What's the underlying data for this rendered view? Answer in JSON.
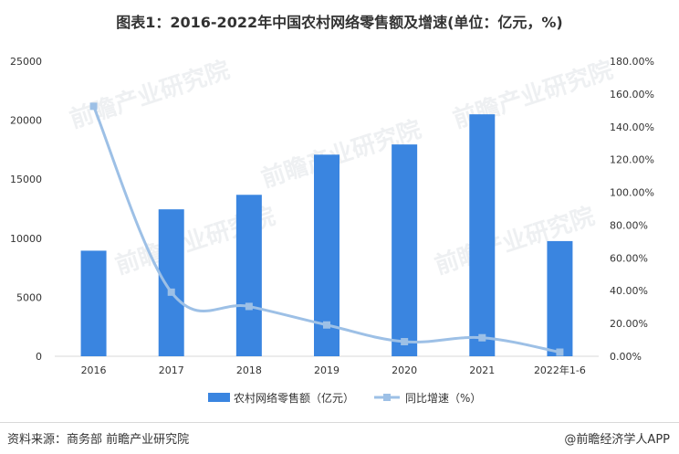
{
  "title": "图表1：2016-2022年中国农村网络零售额及增速(单位：亿元，%)",
  "footer": {
    "source": "资料来源：商务部 前瞻产业研究院",
    "brand": "@前瞻经济学人APP"
  },
  "watermark": "前瞻产业研究院",
  "colors": {
    "bar": "#3a85e0",
    "line": "#9dc0e6",
    "axis": "#d9d9d9"
  },
  "chart_data": {
    "type": "bar+line",
    "categories": [
      "2016",
      "2017",
      "2018",
      "2019",
      "2020",
      "2021",
      "2022年1-6"
    ],
    "series": [
      {
        "name": "农村网络零售额（亿元）",
        "type": "bar",
        "axis": "left",
        "values": [
          8945,
          12449,
          13679,
          17083,
          17946,
          20500,
          9759
        ]
      },
      {
        "name": "同比增速（%）",
        "type": "line",
        "axis": "right",
        "values": [
          152.5,
          39.1,
          30.4,
          19.1,
          8.9,
          11.3,
          2.5
        ]
      }
    ],
    "y_left": {
      "min": 0,
      "max": 25000,
      "ticks": [
        "0",
        "5000",
        "10000",
        "15000",
        "20000",
        "25000"
      ]
    },
    "y_right": {
      "min": 0,
      "max": 180,
      "ticks": [
        "0.00%",
        "20.00%",
        "40.00%",
        "60.00%",
        "80.00%",
        "100.00%",
        "120.00%",
        "140.00%",
        "160.00%",
        "180.00%"
      ]
    },
    "legend_position": "bottom-center",
    "grid": false
  }
}
